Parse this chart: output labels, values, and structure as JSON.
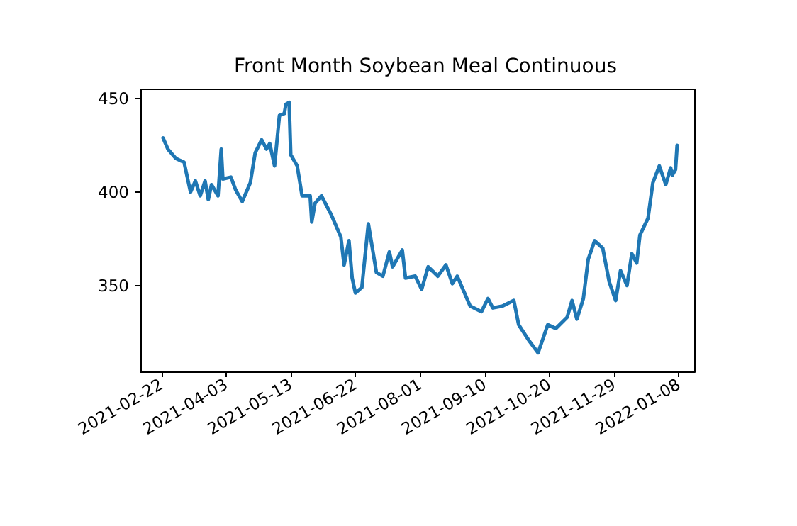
{
  "chart_data": {
    "type": "line",
    "title": "Front Month Soybean Meal Continuous",
    "x": [
      "2021-02-23",
      "2021-02-26",
      "2021-03-03",
      "2021-03-08",
      "2021-03-12",
      "2021-03-15",
      "2021-03-18",
      "2021-03-21",
      "2021-03-23",
      "2021-03-25",
      "2021-03-29",
      "2021-03-31",
      "2021-04-01",
      "2021-04-06",
      "2021-04-09",
      "2021-04-13",
      "2021-04-18",
      "2021-04-21",
      "2021-04-25",
      "2021-04-28",
      "2021-04-30",
      "2021-05-03",
      "2021-05-06",
      "2021-05-09",
      "2021-05-10",
      "2021-05-12",
      "2021-05-13",
      "2021-05-17",
      "2021-05-20",
      "2021-05-25",
      "2021-05-26",
      "2021-05-28",
      "2021-06-01",
      "2021-06-07",
      "2021-06-13",
      "2021-06-15",
      "2021-06-18",
      "2021-06-20",
      "2021-06-22",
      "2021-06-26",
      "2021-06-30",
      "2021-07-05",
      "2021-07-09",
      "2021-07-13",
      "2021-07-15",
      "2021-07-21",
      "2021-07-23",
      "2021-07-29",
      "2021-08-02",
      "2021-08-06",
      "2021-08-12",
      "2021-08-17",
      "2021-08-21",
      "2021-08-24",
      "2021-09-01",
      "2021-09-08",
      "2021-09-12",
      "2021-09-15",
      "2021-09-21",
      "2021-09-28",
      "2021-10-01",
      "2021-10-07",
      "2021-10-13",
      "2021-10-19",
      "2021-10-24",
      "2021-10-31",
      "2021-11-03",
      "2021-11-06",
      "2021-11-10",
      "2021-11-13",
      "2021-11-17",
      "2021-11-22",
      "2021-11-26",
      "2021-11-30",
      "2021-12-03",
      "2021-12-07",
      "2021-12-10",
      "2021-12-13",
      "2021-12-15",
      "2021-12-20",
      "2021-12-23",
      "2021-12-27",
      "2021-12-31",
      "2022-01-03",
      "2022-01-04",
      "2022-01-06",
      "2022-01-07"
    ],
    "series": [
      {
        "color": "#1f77b4",
        "values": [
          429,
          423,
          418,
          416,
          400,
          406,
          398,
          406,
          396,
          404,
          398,
          423,
          407,
          408,
          401,
          395,
          405,
          421,
          428,
          423,
          426,
          414,
          441,
          442,
          447,
          448,
          420,
          414,
          398,
          398,
          384,
          394,
          398,
          388,
          376,
          361,
          374,
          354,
          346,
          349,
          383,
          357,
          355,
          368,
          360,
          369,
          354,
          355,
          348,
          360,
          355,
          361,
          351,
          355,
          339,
          336,
          343,
          338,
          339,
          342,
          329,
          321,
          314,
          329,
          327,
          333,
          342,
          332,
          343,
          364,
          374,
          370,
          352,
          342,
          358,
          350,
          367,
          362,
          377,
          386,
          405,
          414,
          404,
          413,
          409,
          412,
          425
        ]
      }
    ],
    "xlim": [
      "2021-02-09",
      "2022-01-18"
    ],
    "xticks": [
      "2021-02-22",
      "2021-04-03",
      "2021-05-13",
      "2021-06-22",
      "2021-08-01",
      "2021-09-10",
      "2021-10-20",
      "2021-11-29",
      "2022-01-08"
    ],
    "ylim": [
      304,
      455
    ],
    "yticks": [
      350,
      400,
      450
    ],
    "grid": false,
    "marker": "none",
    "line_style": "solid"
  }
}
